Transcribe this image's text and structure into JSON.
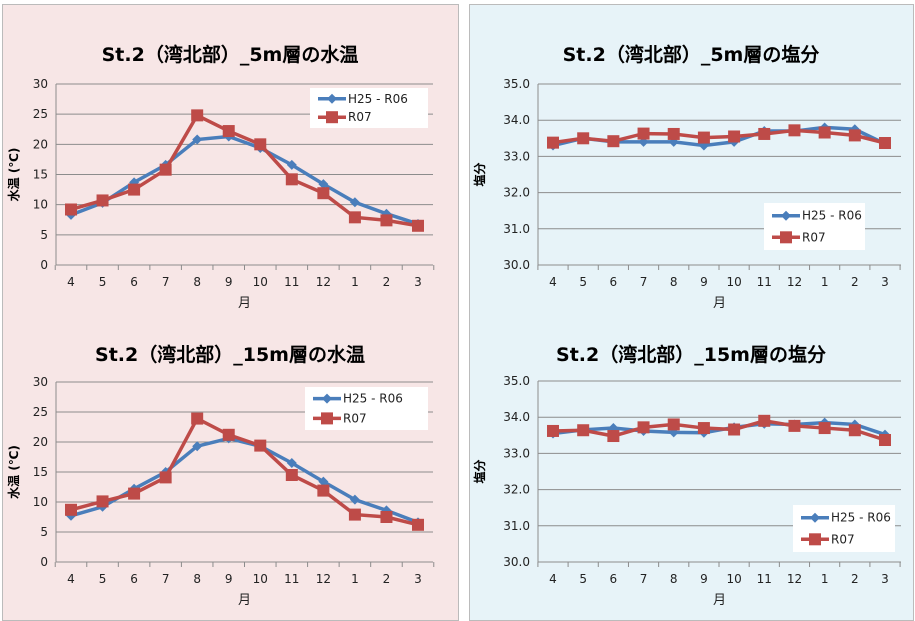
{
  "colors": {
    "series1": "#4a7ebb",
    "series2": "#be4b48",
    "grid": "#8c8c8c"
  },
  "chart_data": [
    {
      "type": "line",
      "title": "St.2（湾北部）_5m層の水温",
      "xlabel": "月",
      "ylabel": "水温 (℃)",
      "ylim": [
        0,
        30
      ],
      "ystep": 5,
      "ydecimals": 0,
      "legend": "top-right",
      "categories": [
        "4",
        "5",
        "6",
        "7",
        "8",
        "9",
        "10",
        "11",
        "12",
        "1",
        "2",
        "3"
      ],
      "series": [
        {
          "name": "H25 - R06",
          "values": [
            8.3,
            10.3,
            13.7,
            16.6,
            20.8,
            21.3,
            19.4,
            16.6,
            13.4,
            10.4,
            8.5,
            6.8
          ]
        },
        {
          "name": "R07",
          "values": [
            9.2,
            10.7,
            12.5,
            15.8,
            24.8,
            22.2,
            20.0,
            14.2,
            11.9,
            7.9,
            7.4,
            6.5
          ]
        }
      ]
    },
    {
      "type": "line",
      "title": "St.2（湾北部）_15m層の水温",
      "xlabel": "月",
      "ylabel": "水温 (℃)",
      "ylim": [
        0,
        30
      ],
      "ystep": 5,
      "ydecimals": 0,
      "legend": "top-right",
      "categories": [
        "4",
        "5",
        "6",
        "7",
        "8",
        "9",
        "10",
        "11",
        "12",
        "1",
        "2",
        "3"
      ],
      "series": [
        {
          "name": "H25 - R06",
          "values": [
            7.7,
            9.2,
            12.2,
            15.0,
            19.3,
            20.6,
            19.3,
            16.5,
            13.4,
            10.4,
            8.6,
            6.6
          ]
        },
        {
          "name": "R07",
          "values": [
            8.7,
            10.1,
            11.4,
            14.1,
            23.9,
            21.2,
            19.4,
            14.5,
            11.9,
            7.9,
            7.5,
            6.2
          ]
        }
      ]
    },
    {
      "type": "line",
      "title": "St.2（湾北部）_5m層の塩分",
      "xlabel": "月",
      "ylabel": "塩分",
      "ylim": [
        30,
        35
      ],
      "ystep": 1,
      "ydecimals": 1,
      "legend": "bottom-right",
      "categories": [
        "4",
        "5",
        "6",
        "7",
        "8",
        "9",
        "10",
        "11",
        "12",
        "1",
        "2",
        "3"
      ],
      "series": [
        {
          "name": "H25 - R06",
          "values": [
            33.3,
            33.5,
            33.4,
            33.4,
            33.4,
            33.3,
            33.4,
            33.7,
            33.7,
            33.8,
            33.75,
            33.35
          ]
        },
        {
          "name": "R07",
          "values": [
            33.38,
            33.5,
            33.42,
            33.63,
            33.62,
            33.52,
            33.55,
            33.62,
            33.72,
            33.66,
            33.58,
            33.37
          ]
        }
      ]
    },
    {
      "type": "line",
      "title": "St.2（湾北部）_15m層の塩分",
      "xlabel": "月",
      "ylabel": "塩分",
      "ylim": [
        30,
        35
      ],
      "ystep": 1,
      "ydecimals": 1,
      "legend": "bottom-right",
      "categories": [
        "4",
        "5",
        "6",
        "7",
        "8",
        "9",
        "10",
        "11",
        "12",
        "1",
        "2",
        "3"
      ],
      "series": [
        {
          "name": "H25 - R06",
          "values": [
            33.55,
            33.65,
            33.7,
            33.62,
            33.58,
            33.57,
            33.72,
            33.82,
            33.8,
            33.85,
            33.8,
            33.52
          ]
        },
        {
          "name": "R07",
          "values": [
            33.62,
            33.64,
            33.48,
            33.72,
            33.8,
            33.7,
            33.66,
            33.9,
            33.76,
            33.7,
            33.64,
            33.37
          ]
        }
      ]
    }
  ]
}
